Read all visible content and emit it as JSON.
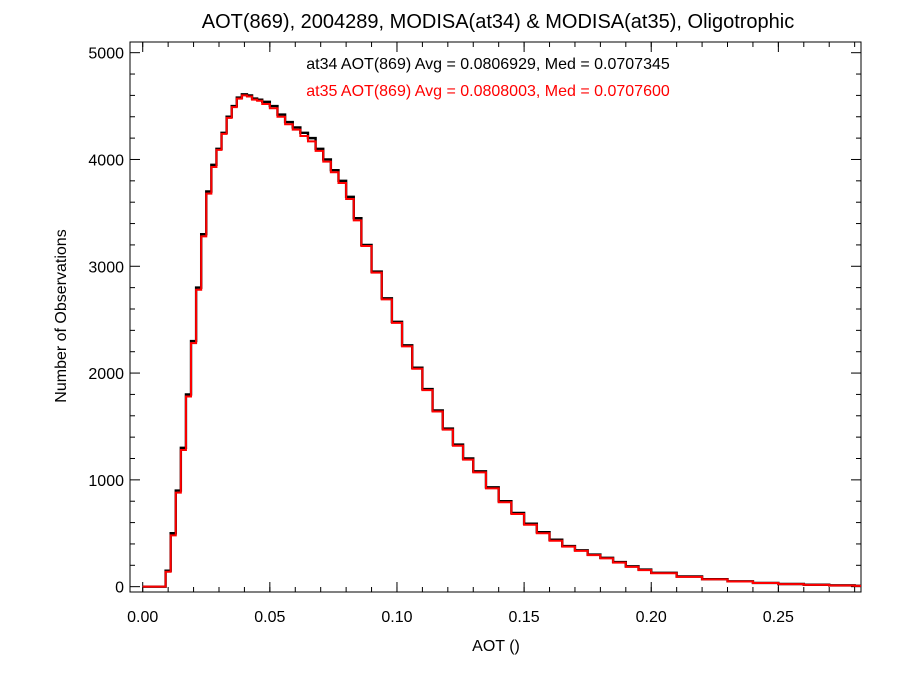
{
  "chart_data": {
    "type": "line",
    "step": true,
    "title": "AOT(869), 2004289, MODISA(at34) & MODISA(at35), Oligotrophic",
    "xlabel": "AOT ()",
    "ylabel": "Number of Observations",
    "xlim": [
      -0.005,
      0.2825
    ],
    "ylim": [
      -50,
      5100
    ],
    "xticks": [
      0.0,
      0.05,
      0.1,
      0.15,
      0.2,
      0.25
    ],
    "xtick_labels": [
      "0.00",
      "0.05",
      "0.10",
      "0.15",
      "0.20",
      "0.25"
    ],
    "yticks": [
      0,
      1000,
      2000,
      3000,
      4000,
      5000
    ],
    "ytick_labels": [
      "0",
      "1000",
      "2000",
      "3000",
      "4000",
      "5000"
    ],
    "grid": false,
    "annotations": [
      {
        "text": "at34 AOT(869) Avg = 0.0806929, Med = 0.0707345",
        "color": "#000000"
      },
      {
        "text": "at35 AOT(869) Avg = 0.0808003, Med = 0.0707600",
        "color": "#ff0000"
      }
    ],
    "series": [
      {
        "color": "#000000",
        "x": [
          0.0,
          0.005,
          0.009,
          0.011,
          0.013,
          0.015,
          0.017,
          0.019,
          0.021,
          0.023,
          0.025,
          0.027,
          0.029,
          0.031,
          0.033,
          0.035,
          0.037,
          0.039,
          0.041,
          0.043,
          0.045,
          0.047,
          0.05,
          0.053,
          0.056,
          0.059,
          0.062,
          0.065,
          0.068,
          0.071,
          0.074,
          0.077,
          0.08,
          0.083,
          0.086,
          0.09,
          0.094,
          0.098,
          0.102,
          0.106,
          0.11,
          0.114,
          0.118,
          0.122,
          0.126,
          0.13,
          0.135,
          0.14,
          0.145,
          0.15,
          0.155,
          0.16,
          0.165,
          0.17,
          0.175,
          0.18,
          0.185,
          0.19,
          0.195,
          0.2,
          0.21,
          0.22,
          0.23,
          0.24,
          0.25,
          0.26,
          0.27,
          0.28
        ],
        "y": [
          0,
          0,
          150,
          500,
          900,
          1300,
          1800,
          2300,
          2800,
          3300,
          3700,
          3950,
          4100,
          4250,
          4400,
          4500,
          4580,
          4610,
          4600,
          4570,
          4560,
          4540,
          4500,
          4420,
          4350,
          4300,
          4250,
          4200,
          4100,
          4000,
          3900,
          3800,
          3650,
          3450,
          3200,
          2950,
          2700,
          2480,
          2260,
          2050,
          1850,
          1650,
          1480,
          1330,
          1200,
          1080,
          930,
          800,
          690,
          590,
          510,
          440,
          380,
          340,
          300,
          270,
          230,
          190,
          160,
          130,
          95,
          70,
          50,
          35,
          25,
          18,
          12,
          8
        ]
      },
      {
        "color": "#ff0000",
        "x": [
          0.0,
          0.005,
          0.009,
          0.011,
          0.013,
          0.015,
          0.017,
          0.019,
          0.021,
          0.023,
          0.025,
          0.027,
          0.029,
          0.031,
          0.033,
          0.035,
          0.037,
          0.039,
          0.041,
          0.043,
          0.045,
          0.047,
          0.05,
          0.053,
          0.056,
          0.059,
          0.062,
          0.065,
          0.068,
          0.071,
          0.074,
          0.077,
          0.08,
          0.083,
          0.086,
          0.09,
          0.094,
          0.098,
          0.102,
          0.106,
          0.11,
          0.114,
          0.118,
          0.122,
          0.126,
          0.13,
          0.135,
          0.14,
          0.145,
          0.15,
          0.155,
          0.16,
          0.165,
          0.17,
          0.175,
          0.18,
          0.185,
          0.19,
          0.195,
          0.2,
          0.21,
          0.22,
          0.23,
          0.24,
          0.25,
          0.26,
          0.27,
          0.28
        ],
        "y": [
          0,
          0,
          140,
          480,
          880,
          1280,
          1780,
          2280,
          2780,
          3280,
          3680,
          3930,
          4090,
          4240,
          4390,
          4490,
          4570,
          4600,
          4590,
          4560,
          4550,
          4520,
          4480,
          4400,
          4330,
          4280,
          4220,
          4170,
          4080,
          3980,
          3880,
          3780,
          3630,
          3430,
          3190,
          2940,
          2690,
          2470,
          2250,
          2040,
          1840,
          1640,
          1470,
          1320,
          1190,
          1070,
          920,
          790,
          680,
          580,
          500,
          430,
          375,
          335,
          295,
          265,
          225,
          185,
          155,
          125,
          92,
          68,
          48,
          34,
          24,
          17,
          11,
          7
        ]
      }
    ]
  }
}
